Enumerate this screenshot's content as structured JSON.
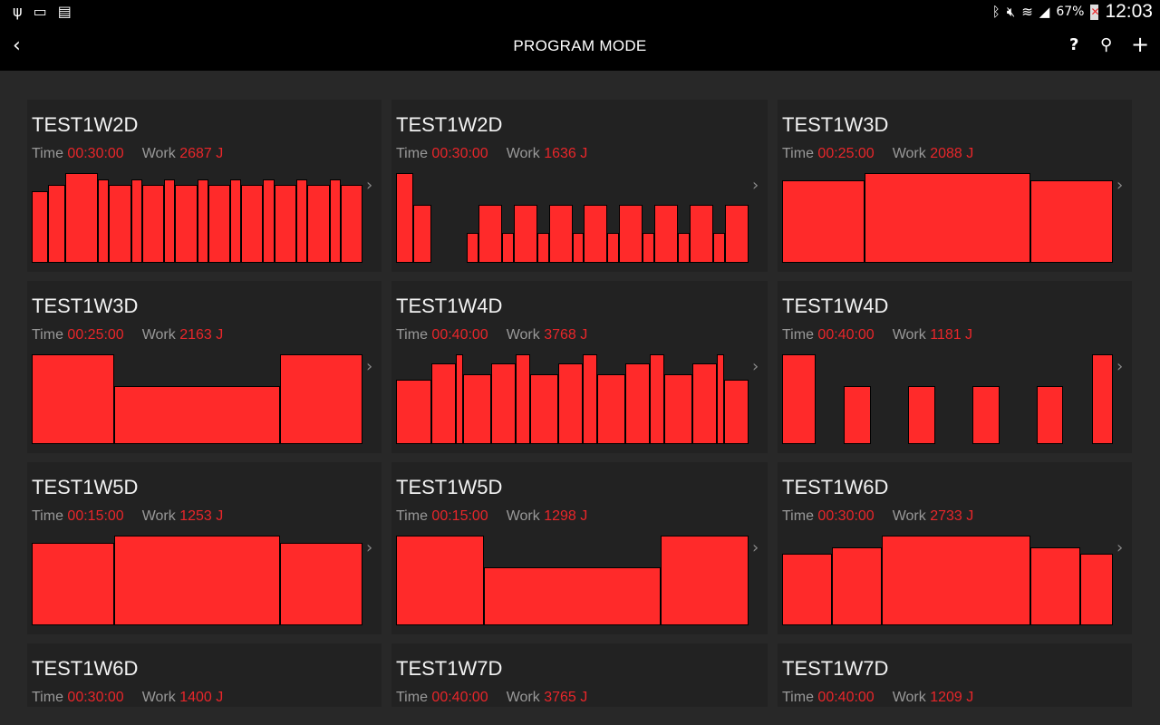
{
  "status_bar": {
    "icons_left": [
      "usb-icon",
      "cast-icon",
      "sim-off-icon"
    ],
    "icons_right": [
      "bluetooth-icon",
      "mute-icon",
      "wifi-icon",
      "signal-icon",
      "battery-icon"
    ],
    "battery": "67%",
    "time": "12:03"
  },
  "action_bar": {
    "title": "PROGRAM MODE",
    "back_icon": "chevron-left-icon",
    "actions": [
      "help-icon",
      "search-icon",
      "add-icon"
    ]
  },
  "labels": {
    "time": "Time",
    "work": "Work"
  },
  "colors": {
    "accent": "#e8262a",
    "bar": "#ff2a2a",
    "card": "#222222",
    "background": "#282828"
  },
  "programs": [
    {
      "name": "TEST1W2D",
      "time": "00:30:00",
      "work": "2687 J",
      "segments": [
        [
          1.5,
          80
        ],
        [
          1.5,
          87
        ],
        [
          3,
          100
        ],
        [
          1,
          93
        ],
        [
          2,
          87
        ],
        [
          1,
          93
        ],
        [
          2,
          87
        ],
        [
          1,
          93
        ],
        [
          2,
          87
        ],
        [
          1,
          93
        ],
        [
          2,
          87
        ],
        [
          1,
          93
        ],
        [
          2,
          87
        ],
        [
          1,
          93
        ],
        [
          2,
          87
        ],
        [
          1,
          93
        ],
        [
          2,
          87
        ],
        [
          1,
          93
        ],
        [
          2,
          87
        ]
      ]
    },
    {
      "name": "TEST1W2D",
      "time": "00:30:00",
      "work": "1636 J",
      "segments": [
        [
          1.5,
          100
        ],
        [
          1.5,
          65
        ],
        [
          3,
          0
        ],
        [
          1,
          33
        ],
        [
          2,
          65
        ],
        [
          1,
          33
        ],
        [
          2,
          65
        ],
        [
          1,
          33
        ],
        [
          2,
          65
        ],
        [
          1,
          33
        ],
        [
          2,
          65
        ],
        [
          1,
          33
        ],
        [
          2,
          65
        ],
        [
          1,
          33
        ],
        [
          2,
          65
        ],
        [
          1,
          33
        ],
        [
          2,
          65
        ],
        [
          1,
          33
        ],
        [
          2,
          65
        ]
      ]
    },
    {
      "name": "TEST1W3D",
      "time": "00:25:00",
      "work": "2088 J",
      "segments": [
        [
          6.25,
          92
        ],
        [
          12.5,
          100
        ],
        [
          6.25,
          92
        ]
      ]
    },
    {
      "name": "TEST1W3D",
      "time": "00:25:00",
      "work": "2163 J",
      "segments": [
        [
          6.25,
          100
        ],
        [
          12.5,
          65
        ],
        [
          6.25,
          100
        ]
      ]
    },
    {
      "name": "TEST1W4D",
      "time": "00:40:00",
      "work": "3768 J",
      "segments": [
        [
          4,
          72
        ],
        [
          2.75,
          90
        ],
        [
          0.8,
          100
        ],
        [
          3.2,
          78
        ],
        [
          2.75,
          90
        ],
        [
          1.65,
          100
        ],
        [
          3.2,
          78
        ],
        [
          2.75,
          90
        ],
        [
          1.65,
          100
        ],
        [
          3.2,
          78
        ],
        [
          2.75,
          90
        ],
        [
          1.65,
          100
        ],
        [
          3.2,
          78
        ],
        [
          2.75,
          90
        ],
        [
          0.8,
          100
        ],
        [
          2.8,
          72
        ]
      ]
    },
    {
      "name": "TEST1W4D",
      "time": "00:40:00",
      "work": "1181 J",
      "segments": [
        [
          4,
          100
        ],
        [
          3.5,
          0
        ],
        [
          3.25,
          65
        ],
        [
          4.5,
          0
        ],
        [
          3.25,
          65
        ],
        [
          4.5,
          0
        ],
        [
          3.25,
          65
        ],
        [
          4.5,
          0
        ],
        [
          3.25,
          65
        ],
        [
          3.5,
          0
        ],
        [
          2.5,
          100
        ]
      ]
    },
    {
      "name": "TEST1W5D",
      "time": "00:15:00",
      "work": "1253 J",
      "segments": [
        [
          3.75,
          92
        ],
        [
          7.5,
          100
        ],
        [
          3.75,
          92
        ]
      ]
    },
    {
      "name": "TEST1W5D",
      "time": "00:15:00",
      "work": "1298 J",
      "segments": [
        [
          3.75,
          100
        ],
        [
          7.5,
          65
        ],
        [
          3.75,
          100
        ]
      ]
    },
    {
      "name": "TEST1W6D",
      "time": "00:30:00",
      "work": "2733 J",
      "segments": [
        [
          4.5,
          80
        ],
        [
          4.5,
          87
        ],
        [
          13.5,
          100
        ],
        [
          4.5,
          87
        ],
        [
          3,
          80
        ]
      ]
    },
    {
      "name": "TEST1W6D",
      "time": "00:30:00",
      "work": "1400 J",
      "segments": []
    },
    {
      "name": "TEST1W7D",
      "time": "00:40:00",
      "work": "3765 J",
      "segments": []
    },
    {
      "name": "TEST1W7D",
      "time": "00:40:00",
      "work": "1209 J",
      "segments": []
    }
  ]
}
